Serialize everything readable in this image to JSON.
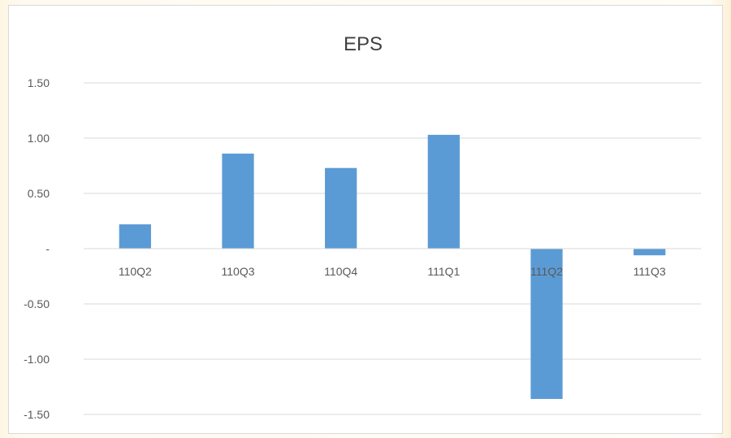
{
  "chart_data": {
    "type": "bar",
    "title": "EPS",
    "xlabel": "",
    "ylabel": "",
    "categories": [
      "110Q2",
      "110Q3",
      "110Q4",
      "111Q1",
      "111Q2",
      "111Q3"
    ],
    "values": [
      0.22,
      0.86,
      0.73,
      1.03,
      -1.36,
      -0.06
    ],
    "ylim": [
      -1.5,
      1.5
    ],
    "yticks": [
      1.5,
      1.0,
      0.5,
      0,
      -0.5,
      -1.0,
      -1.5
    ],
    "ytick_labels": [
      "1.50",
      "1.00",
      "0.50",
      "-",
      "-0.50",
      "-1.00",
      "-1.50"
    ],
    "grid": true,
    "legend": "none",
    "bar_color": "#5b9bd5",
    "grid_color": "#d9d9d9"
  }
}
